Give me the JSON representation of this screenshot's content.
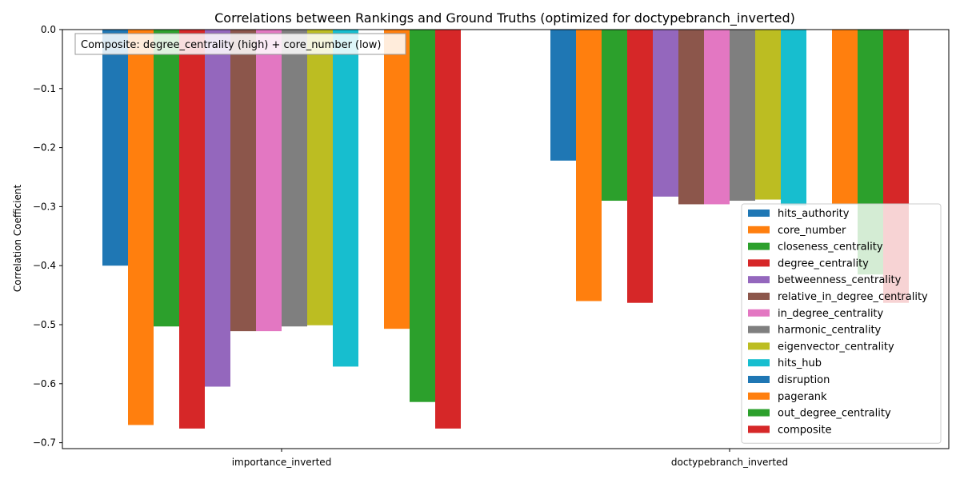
{
  "chart_data": {
    "type": "bar",
    "title": "Correlations between Rankings and Ground Truths (optimized for doctypebranch_inverted)",
    "ylabel": "Correlation Coefficient",
    "xlabel": "",
    "categories": [
      "importance_inverted",
      "doctypebranch_inverted"
    ],
    "ylim": [
      -0.71,
      0.0
    ],
    "yticks": [
      0.0,
      -0.1,
      -0.2,
      -0.3,
      -0.4,
      -0.5,
      -0.6,
      -0.7
    ],
    "ytick_labels": [
      "0.0",
      "−0.1",
      "−0.2",
      "−0.3",
      "−0.4",
      "−0.5",
      "−0.6",
      "−0.7"
    ],
    "grid": false,
    "legend_position": "bottom-right",
    "annotation": "Composite: degree_centrality (high) + core_number (low)",
    "series": [
      {
        "name": "hits_authority",
        "color": "#1f77b4",
        "values": [
          -0.4,
          -0.222
        ]
      },
      {
        "name": "core_number",
        "color": "#ff7f0e",
        "values": [
          -0.67,
          -0.46
        ]
      },
      {
        "name": "closeness_centrality",
        "color": "#2ca02c",
        "values": [
          -0.503,
          -0.29
        ]
      },
      {
        "name": "degree_centrality",
        "color": "#d62728",
        "values": [
          -0.676,
          -0.463
        ]
      },
      {
        "name": "betweenness_centrality",
        "color": "#9467bd",
        "values": [
          -0.605,
          -0.283
        ]
      },
      {
        "name": "relative_in_degree_centrality",
        "color": "#8c564b",
        "values": [
          -0.511,
          -0.296
        ]
      },
      {
        "name": "in_degree_centrality",
        "color": "#e377c2",
        "values": [
          -0.511,
          -0.296
        ]
      },
      {
        "name": "harmonic_centrality",
        "color": "#7f7f7f",
        "values": [
          -0.503,
          -0.29
        ]
      },
      {
        "name": "eigenvector_centrality",
        "color": "#bcbd22",
        "values": [
          -0.501,
          -0.288
        ]
      },
      {
        "name": "hits_hub",
        "color": "#17becf",
        "values": [
          -0.571,
          -0.298
        ]
      },
      {
        "name": "disruption",
        "color": "#1f77b4",
        "values": [
          0.0,
          0.0
        ]
      },
      {
        "name": "pagerank",
        "color": "#ff7f0e",
        "values": [
          -0.507,
          -0.296
        ]
      },
      {
        "name": "out_degree_centrality",
        "color": "#2ca02c",
        "values": [
          -0.631,
          -0.415
        ]
      },
      {
        "name": "composite",
        "color": "#d62728",
        "values": [
          -0.676,
          -0.463
        ]
      }
    ]
  }
}
